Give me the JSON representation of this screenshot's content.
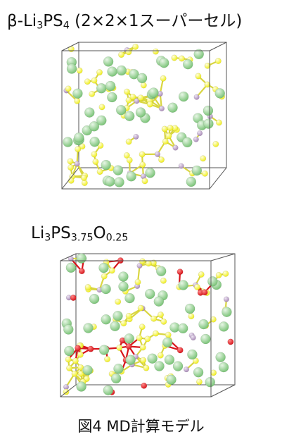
{
  "structure_1": {
    "title_main": "β-Li",
    "sub_a": "3",
    "mid": "PS",
    "sub_b": "4",
    "suffix": " (2×2×1スーパーセル)"
  },
  "structure_2": {
    "p1": "Li",
    "s1": "3",
    "p2": "PS",
    "s2": "3.75",
    "p3": "O",
    "s3": "0.25"
  },
  "caption": "図4 MD計算モデル",
  "colors": {
    "li_atom": "#7cc479",
    "s_atom": "#f0ee1e",
    "p_atom": "#a98bb8",
    "o_atom": "#d8141a",
    "cell_edge": "#555555",
    "bond_s": "#d9d641"
  }
}
